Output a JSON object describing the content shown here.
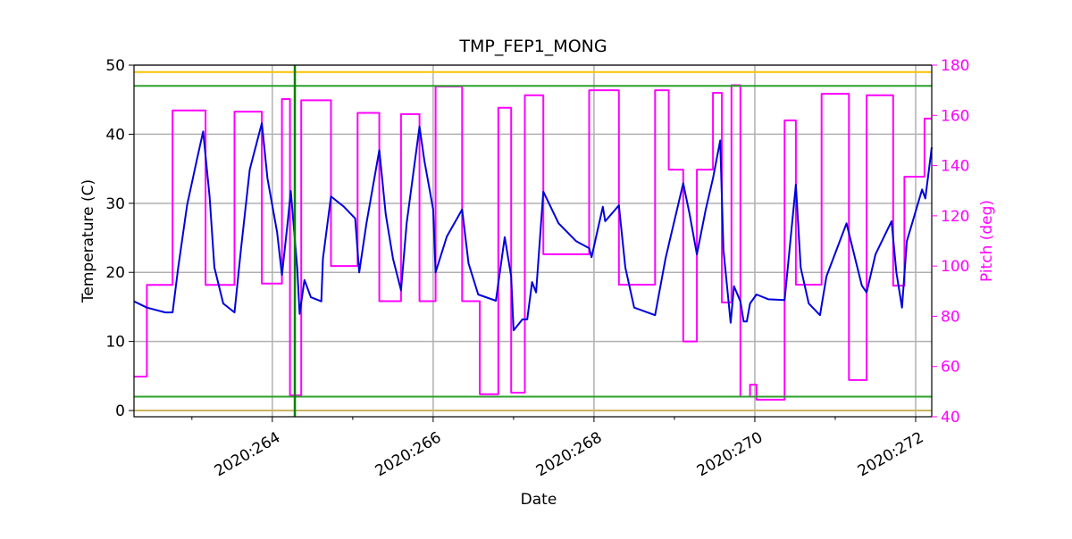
{
  "chart_data": {
    "type": "line",
    "title": "TMP_FEP1_MONG",
    "xlabel": "Date",
    "ylabel": "Temperature (C)",
    "y2label": "Pitch (deg)",
    "y2color": "#ff00ff",
    "xlim": [
      262.28,
      272.2
    ],
    "xticks": [
      {
        "value": 264,
        "label": "2020:264"
      },
      {
        "value": 266,
        "label": "2020:266"
      },
      {
        "value": 268,
        "label": "2020:268"
      },
      {
        "value": 270,
        "label": "2020:270"
      },
      {
        "value": 272,
        "label": "2020:272"
      }
    ],
    "xminorticks": [
      263,
      265,
      267,
      269,
      271
    ],
    "ylim": [
      -0.9,
      50
    ],
    "yticks": [
      0,
      10,
      20,
      30,
      40,
      50
    ],
    "y2lim": [
      40,
      180
    ],
    "y2ticks": [
      40,
      60,
      80,
      100,
      120,
      140,
      160,
      180
    ],
    "grid": true,
    "hlines": [
      {
        "value": 49,
        "color": "#ffc000"
      },
      {
        "value": 47,
        "color": "#2ca02c"
      },
      {
        "value": 2,
        "color": "#2ca02c"
      },
      {
        "value": 0,
        "color": "#c8b560"
      }
    ],
    "vlines": [
      {
        "value": 264.28,
        "color": "#008000"
      }
    ],
    "series": [
      {
        "color": "#ff00ff",
        "axis": "y2",
        "x": [
          262.28,
          262.44,
          262.44,
          262.76,
          262.76,
          263.17,
          263.17,
          263.53,
          263.53,
          263.87,
          263.87,
          264.12,
          264.12,
          264.22,
          264.22,
          264.36,
          264.36,
          264.73,
          264.73,
          265.06,
          265.06,
          265.33,
          265.33,
          265.6,
          265.6,
          265.83,
          265.83,
          266.03,
          266.03,
          266.36,
          266.36,
          266.58,
          266.58,
          266.81,
          266.81,
          266.97,
          266.97,
          267.14,
          267.14,
          267.37,
          267.37,
          267.94,
          267.94,
          268.31,
          268.31,
          268.76,
          268.76,
          268.93,
          268.93,
          269.11,
          269.11,
          269.28,
          269.28,
          269.48,
          269.48,
          269.59,
          269.59,
          269.71,
          269.71,
          269.82,
          269.82,
          269.94,
          269.94,
          270.02,
          270.02,
          270.37,
          270.37,
          270.51,
          270.51,
          270.83,
          270.83,
          271.17,
          271.17,
          271.39,
          271.39,
          271.72,
          271.72,
          271.86,
          271.86,
          272.11,
          272.11,
          272.2
        ],
        "values": [
          56,
          56,
          92.5,
          92.5,
          162,
          162,
          92.5,
          92.5,
          161.5,
          161.5,
          93,
          93,
          166.5,
          166.5,
          48.5,
          48.5,
          166,
          166,
          100,
          100,
          161,
          161,
          86,
          86,
          160.5,
          160.5,
          86,
          86,
          171.5,
          171.5,
          86,
          86,
          49,
          49,
          163,
          163,
          49.6,
          49.6,
          168,
          168,
          104.7,
          104.7,
          170,
          170,
          92.6,
          92.6,
          170,
          170,
          138.4,
          138.4,
          70,
          70,
          138.4,
          138.4,
          169,
          169,
          85.5,
          85.5,
          172,
          172,
          48,
          48,
          52.8,
          52.8,
          46.8,
          46.8,
          158,
          158,
          92.6,
          92.6,
          168.6,
          168.6,
          54.6,
          54.6,
          168,
          168,
          92.2,
          92.2,
          135.6,
          135.6,
          158.7,
          158.7
        ]
      },
      {
        "color": "#0000dd",
        "x": [
          262.28,
          262.44,
          262.67,
          262.76,
          262.83,
          262.94,
          263.06,
          263.14,
          263.22,
          263.28,
          263.39,
          263.53,
          263.61,
          263.72,
          263.87,
          263.94,
          264.06,
          264.12,
          264.19,
          264.23,
          264.31,
          264.34,
          264.4,
          264.48,
          264.61,
          264.63,
          264.73,
          264.89,
          265.03,
          265.08,
          265.17,
          265.33,
          265.41,
          265.5,
          265.6,
          265.67,
          265.83,
          265.89,
          266,
          266.03,
          266.17,
          266.36,
          266.44,
          266.56,
          266.78,
          266.89,
          266.97,
          267,
          267.11,
          267.17,
          267.23,
          267.28,
          267.37,
          267.56,
          267.78,
          267.94,
          267.97,
          268.11,
          268.14,
          268.31,
          268.39,
          268.5,
          268.76,
          268.89,
          268.94,
          269.11,
          269.19,
          269.28,
          269.39,
          269.48,
          269.57,
          269.61,
          269.7,
          269.74,
          269.82,
          269.86,
          269.9,
          269.94,
          270.02,
          270.17,
          270.37,
          270.51,
          270.57,
          270.67,
          270.81,
          270.89,
          271.14,
          271.22,
          271.33,
          271.39,
          271.5,
          271.7,
          271.76,
          271.83,
          271.89,
          272.08,
          272.12,
          272.2
        ],
        "values": [
          15.8,
          14.9,
          14.2,
          14.2,
          20.7,
          29.7,
          36.2,
          40.4,
          31,
          20.7,
          15.5,
          14.2,
          23.3,
          34.9,
          41.6,
          33.6,
          25.8,
          19.6,
          27.1,
          31.8,
          20.7,
          14,
          18.9,
          16.4,
          15.8,
          22,
          31,
          29.5,
          27.8,
          20,
          27.1,
          37.7,
          28.4,
          22,
          17.4,
          27.1,
          41.1,
          36.2,
          29.1,
          20,
          25.2,
          29.1,
          21.3,
          16.8,
          15.9,
          25.1,
          19.4,
          11.6,
          13.2,
          13.2,
          18.6,
          17.1,
          31.7,
          27.1,
          24.5,
          23.5,
          22.2,
          29.5,
          27.4,
          29.7,
          20.7,
          14.9,
          13.8,
          22,
          24.5,
          32.9,
          28.4,
          22.6,
          29.1,
          33.6,
          39.1,
          23.3,
          12.7,
          18,
          15.8,
          12.9,
          12.9,
          15.5,
          16.8,
          16.1,
          16,
          32.7,
          20.7,
          15.5,
          13.8,
          19.4,
          27.1,
          23.3,
          18.1,
          17.1,
          22.6,
          27.4,
          20,
          14.9,
          24.5,
          32,
          30.7,
          38.1
        ]
      }
    ]
  }
}
